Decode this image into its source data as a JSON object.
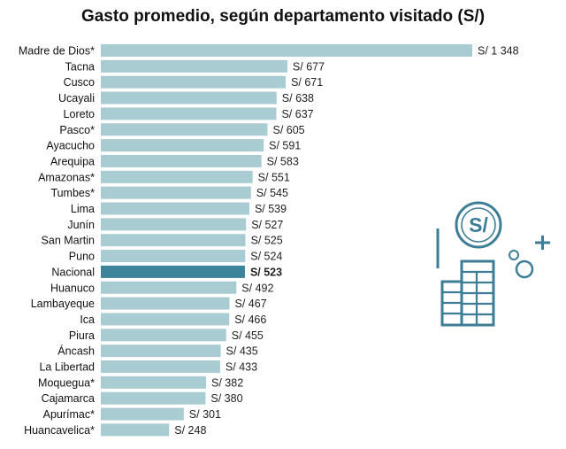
{
  "colors": {
    "bar": "#a8ccd2",
    "highlight_bar": "#3c8499",
    "icon": "#3d7d95"
  },
  "icon": {
    "name": "coin-stack-icon",
    "symbol": "S/"
  },
  "chart_data": {
    "type": "bar",
    "orientation": "horizontal",
    "title": "Gasto promedio, según departamento visitado (S/)",
    "highlight": "Nacional",
    "value_prefix": "S/ ",
    "grid": false,
    "categories": [
      "Madre de Dios*",
      "Tacna",
      "Cusco",
      "Ucayali",
      "Loreto",
      "Pasco*",
      "Ayacucho",
      "Arequipa",
      "Amazonas*",
      "Tumbes*",
      "Lima",
      "Junín",
      "San Martin",
      "Puno",
      "Nacional",
      "Huanuco",
      "Lambayeque",
      "Ica",
      "Piura",
      "Áncash",
      "La Libertad",
      "Moquegua*",
      "Cajamarca",
      "Apurímac*",
      "Huancavelica*"
    ],
    "values": [
      1348,
      677,
      671,
      638,
      637,
      605,
      591,
      583,
      551,
      545,
      539,
      527,
      525,
      524,
      523,
      492,
      467,
      466,
      455,
      435,
      433,
      382,
      380,
      301,
      248
    ],
    "value_labels": [
      "S/ 1 348",
      "S/ 677",
      "S/ 671",
      "S/ 638",
      "S/ 637",
      "S/ 605",
      "S/ 591",
      "S/ 583",
      "S/ 551",
      "S/ 545",
      "S/ 539",
      "S/ 527",
      "S/ 525",
      "S/ 524",
      "S/ 523",
      "S/ 492",
      "S/ 467",
      "S/ 466",
      "S/ 455",
      "S/ 435",
      "S/ 433",
      "S/ 382",
      "S/ 380",
      "S/ 301",
      "S/ 248"
    ]
  }
}
